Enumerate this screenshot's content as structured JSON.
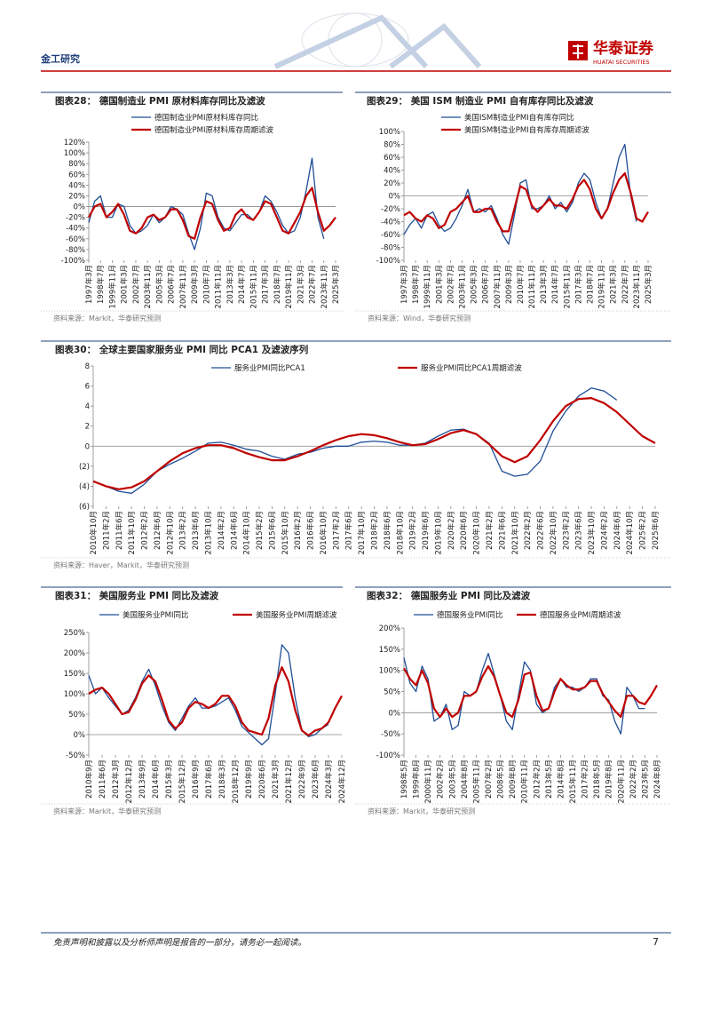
{
  "header": {
    "section": "金工研究",
    "logo": "华泰证券",
    "logo_en": "HUATAI SECURITIES"
  },
  "footer": {
    "disclaimer": "免责声明和披露以及分析师声明是报告的一部分，请务必一起阅读。",
    "page": 7
  },
  "chart_data": [
    {
      "type": "line",
      "title": "图表28： 德国制造业 PMI 原材料库存同比及滤波",
      "source": "资料来源：Markit，华泰研究预测",
      "categories": [
        "1997年3月",
        null,
        "1998年7月",
        null,
        "1999年11月",
        null,
        "2001年3月",
        null,
        "2002年7月",
        null,
        "2003年11月",
        null,
        "2005年3月",
        null,
        "2006年7月",
        null,
        "2007年11月",
        null,
        "2009年3月",
        null,
        "2010年7月",
        null,
        "2011年11月",
        null,
        "2013年3月",
        null,
        "2014年7月",
        null,
        "2015年11月",
        null,
        "2017年3月",
        null,
        "2018年7月",
        null,
        "2019年11月",
        null,
        "2021年3月",
        null,
        "2022年7月",
        null,
        "2023年11月",
        null,
        "2025年3月"
      ],
      "series": [
        {
          "name": "德国制造业PMI原材料库存同比",
          "color": "#1f4e96",
          "values": [
            -30,
            10,
            20,
            -20,
            -20,
            5,
            0,
            -35,
            -50,
            -45,
            -35,
            -15,
            -30,
            -20,
            0,
            -5,
            -15,
            -50,
            -80,
            -40,
            25,
            20,
            -20,
            -40,
            -45,
            -30,
            -15,
            -15,
            -25,
            -10,
            20,
            10,
            -10,
            -35,
            -50,
            -45,
            -20,
            30,
            90,
            -20,
            -60,
            null,
            null
          ]
        },
        {
          "name": "德国制造业PMI原材料库存周期滤波",
          "color": "#c00000",
          "values": [
            -20,
            0,
            5,
            -20,
            -10,
            5,
            -15,
            -45,
            -50,
            -40,
            -20,
            -15,
            -25,
            -20,
            -5,
            -5,
            -25,
            -55,
            -60,
            -20,
            10,
            5,
            -25,
            -45,
            -40,
            -15,
            -5,
            -20,
            -25,
            -10,
            10,
            5,
            -20,
            -45,
            -50,
            -30,
            -10,
            20,
            35,
            -10,
            -45,
            -35,
            -20
          ]
        }
      ],
      "ylim": [
        -100,
        120
      ],
      "yticks": [
        {
          "value": -100,
          "label": "-100%"
        },
        {
          "value": -80,
          "label": "-80%"
        },
        {
          "value": -60,
          "label": "-60%"
        },
        {
          "value": -40,
          "label": "-40%"
        },
        {
          "value": -20,
          "label": "-20%"
        },
        {
          "value": 0,
          "label": "0%"
        },
        {
          "value": 20,
          "label": "20%"
        },
        {
          "value": 40,
          "label": "40%"
        },
        {
          "value": 60,
          "label": "60%"
        },
        {
          "value": 80,
          "label": "80%"
        },
        {
          "value": 100,
          "label": "100%"
        },
        {
          "value": 120,
          "label": "120%"
        }
      ],
      "legend": "top-left"
    },
    {
      "type": "line",
      "title": "图表29： 美国 ISM 制造业 PMI 自有库存同比及滤波",
      "source": "资料来源：Wind，华泰研究预测",
      "categories": [
        "1997年3月",
        null,
        "1998年7月",
        null,
        "1999年11月",
        null,
        "2001年3月",
        null,
        "2002年7月",
        null,
        "2003年11月",
        null,
        "2005年3月",
        null,
        "2006年7月",
        null,
        "2007年11月",
        null,
        "2009年3月",
        null,
        "2010年7月",
        null,
        "2011年11月",
        null,
        "2013年3月",
        null,
        "2014年7月",
        null,
        "2015年11月",
        null,
        "2017年3月",
        null,
        "2018年7月",
        null,
        "2019年11月",
        null,
        "2021年3月",
        null,
        "2022年7月",
        null,
        "2023年11月",
        null,
        "2025年3月"
      ],
      "series": [
        {
          "name": "美国ISM制造业PMI自有库存同比",
          "color": "#1f4e96",
          "values": [
            -60,
            -45,
            -35,
            -50,
            -30,
            -25,
            -45,
            -55,
            -50,
            -35,
            -15,
            10,
            -25,
            -20,
            -25,
            -15,
            -35,
            -60,
            -75,
            -30,
            20,
            25,
            -20,
            -20,
            -15,
            0,
            -20,
            -10,
            -25,
            -10,
            20,
            35,
            25,
            -10,
            -35,
            -20,
            20,
            60,
            80,
            0,
            -40,
            null,
            null
          ]
        },
        {
          "name": "美国ISM制造业PMI自有库存周期滤波",
          "color": "#c00000",
          "values": [
            -30,
            -25,
            -35,
            -40,
            -30,
            -35,
            -50,
            -45,
            -25,
            -20,
            -10,
            0,
            -25,
            -25,
            -20,
            -20,
            -40,
            -55,
            -55,
            -20,
            15,
            10,
            -15,
            -25,
            -15,
            -5,
            -15,
            -15,
            -20,
            -5,
            15,
            25,
            10,
            -20,
            -35,
            -20,
            5,
            25,
            35,
            5,
            -35,
            -40,
            -25
          ]
        }
      ],
      "ylim": [
        -100,
        100
      ],
      "yticks": [
        {
          "value": -100,
          "label": "-100%"
        },
        {
          "value": -80,
          "label": "-80%"
        },
        {
          "value": -60,
          "label": "-60%"
        },
        {
          "value": -40,
          "label": "-40%"
        },
        {
          "value": -20,
          "label": "-20%"
        },
        {
          "value": 0,
          "label": "0%"
        },
        {
          "value": 20,
          "label": "20%"
        },
        {
          "value": 40,
          "label": "40%"
        },
        {
          "value": 60,
          "label": "60%"
        },
        {
          "value": 80,
          "label": "80%"
        },
        {
          "value": 100,
          "label": "100%"
        }
      ],
      "legend": "top-left"
    },
    {
      "type": "line",
      "title": "图表30： 全球主要国家服务业 PMI 同比 PCA1 及滤波序列",
      "source": "资料来源：Haver，Markit，华泰研究预测",
      "categories": [
        "2010年10月",
        "2011年2月",
        "2011年6月",
        "2011年10月",
        "2012年2月",
        "2012年6月",
        "2012年10月",
        "2013年2月",
        "2013年6月",
        "2013年10月",
        "2014年2月",
        "2014年6月",
        "2014年10月",
        "2015年2月",
        "2015年6月",
        "2015年10月",
        "2016年2月",
        "2016年6月",
        "2016年10月",
        "2017年2月",
        "2017年6月",
        "2017年10月",
        "2018年2月",
        "2018年6月",
        "2018年10月",
        "2019年2月",
        "2019年6月",
        "2019年10月",
        "2020年2月",
        "2020年6月",
        "2020年10月",
        "2021年2月",
        "2021年6月",
        "2021年10月",
        "2022年2月",
        "2022年6月",
        "2022年10月",
        "2023年2月",
        "2023年6月",
        "2023年10月",
        "2024年2月",
        "2024年6月",
        "2024年10月",
        "2025年2月",
        "2025年6月"
      ],
      "series": [
        {
          "name": "服务业PMI同比PCA1",
          "color": "#1f4e96",
          "values": [
            -3.5,
            -4.0,
            -4.5,
            -4.7,
            -3.8,
            -2.5,
            -1.8,
            -1.2,
            -0.5,
            0.3,
            0.4,
            0.1,
            -0.3,
            -0.5,
            -1.0,
            -1.3,
            -0.8,
            -0.6,
            -0.2,
            0,
            0,
            0.4,
            0.5,
            0.4,
            0.1,
            0.1,
            0.3,
            1.0,
            1.6,
            1.7,
            1.2,
            0.3,
            -2.5,
            -3.0,
            -2.8,
            -1.5,
            1.5,
            3.5,
            5.0,
            5.8,
            5.5,
            4.6,
            null,
            null,
            null
          ]
        },
        {
          "name": "服务业PMI同比PCA1周期滤波",
          "color": "#c00000",
          "values": [
            -3.5,
            -4.0,
            -4.3,
            -4.1,
            -3.5,
            -2.5,
            -1.5,
            -0.7,
            -0.2,
            0.1,
            0.1,
            -0.2,
            -0.7,
            -1.1,
            -1.4,
            -1.4,
            -1.0,
            -0.5,
            0.1,
            0.6,
            1.0,
            1.2,
            1.1,
            0.8,
            0.4,
            0.1,
            0.2,
            0.7,
            1.3,
            1.6,
            1.2,
            0.2,
            -1.0,
            -1.6,
            -1.0,
            0.6,
            2.5,
            4.0,
            4.7,
            4.8,
            4.3,
            3.4,
            2.2,
            1.0,
            0.3
          ]
        }
      ],
      "ylim": [
        -6,
        8
      ],
      "yticks": [
        {
          "value": -6,
          "label": "(6)"
        },
        {
          "value": -4,
          "label": "(4)"
        },
        {
          "value": -2,
          "label": "(2)"
        },
        0,
        2,
        4,
        6,
        8
      ],
      "legend": "top-center"
    },
    {
      "type": "line",
      "title": "图表31： 美国服务业 PMI 同比及滤波",
      "source": "资料来源：Markit，华泰研究预测",
      "categories": [
        "2010年9月",
        null,
        "2011年6月",
        null,
        "2012年3月",
        null,
        "2012年12月",
        null,
        "2013年9月",
        null,
        "2014年6月",
        null,
        "2015年3月",
        null,
        "2015年12月",
        null,
        "2016年9月",
        null,
        "2017年6月",
        null,
        "2018年3月",
        null,
        "2018年12月",
        null,
        "2019年9月",
        null,
        "2020年6月",
        null,
        "2021年3月",
        null,
        "2021年12月",
        null,
        "2022年9月",
        null,
        "2023年6月",
        null,
        "2024年3月",
        null,
        "2024年12月"
      ],
      "series": [
        {
          "name": "美国服务业PMI同比",
          "color": "#1f4e96",
          "values": [
            145,
            100,
            115,
            90,
            70,
            50,
            60,
            90,
            130,
            160,
            120,
            70,
            30,
            10,
            40,
            70,
            90,
            65,
            65,
            70,
            80,
            90,
            60,
            20,
            5,
            -10,
            -25,
            -10,
            100,
            220,
            200,
            90,
            10,
            -5,
            0,
            15,
            25,
            null,
            null
          ]
        },
        {
          "name": "美国服务业PMI周期滤波",
          "color": "#c00000",
          "values": [
            100,
            110,
            115,
            100,
            75,
            50,
            55,
            85,
            125,
            145,
            130,
            85,
            35,
            15,
            30,
            65,
            80,
            75,
            65,
            75,
            95,
            95,
            70,
            30,
            10,
            5,
            0,
            40,
            120,
            165,
            130,
            60,
            10,
            -2,
            10,
            15,
            30,
            65,
            95
          ]
        }
      ],
      "ylim": [
        -50,
        250
      ],
      "yticks": [
        {
          "value": -50,
          "label": "-50%"
        },
        {
          "value": 0,
          "label": "0%"
        },
        {
          "value": 50,
          "label": "50%"
        },
        {
          "value": 100,
          "label": "100%"
        },
        {
          "value": 150,
          "label": "150%"
        },
        {
          "value": 200,
          "label": "200%"
        },
        {
          "value": 250,
          "label": "250%"
        }
      ],
      "legend": "top-center"
    },
    {
      "type": "line",
      "title": "图表32： 德国服务业 PMI 同比及滤波",
      "source": "资料来源：Markit，华泰研究预测",
      "categories": [
        "1998年5月",
        null,
        "1999年8月",
        null,
        "2000年11月",
        null,
        "2002年2月",
        null,
        "2003年5月",
        null,
        "2004年8月",
        null,
        "2005年11月",
        null,
        "2007年2月",
        null,
        "2008年5月",
        null,
        "2009年8月",
        null,
        "2010年11月",
        null,
        "2012年2月",
        null,
        "2013年5月",
        null,
        "2014年8月",
        null,
        "2015年11月",
        null,
        "2017年2月",
        null,
        "2018年5月",
        null,
        "2019年8月",
        null,
        "2020年11月",
        null,
        "2022年2月",
        null,
        "2023年5月",
        null,
        "2024年8月"
      ],
      "series": [
        {
          "name": "德国服务业PMI同比",
          "color": "#1f4e96",
          "values": [
            130,
            70,
            50,
            110,
            80,
            -20,
            -10,
            20,
            -40,
            -30,
            50,
            40,
            50,
            100,
            140,
            90,
            40,
            -20,
            -40,
            40,
            120,
            100,
            20,
            0,
            10,
            60,
            80,
            60,
            60,
            50,
            60,
            80,
            80,
            40,
            30,
            -20,
            -50,
            60,
            40,
            10,
            10,
            null,
            null
          ]
        },
        {
          "name": "德国服务业PMI周期滤波",
          "color": "#c00000",
          "values": [
            105,
            80,
            65,
            100,
            70,
            10,
            -10,
            10,
            -10,
            0,
            40,
            40,
            50,
            85,
            110,
            85,
            40,
            0,
            -10,
            30,
            90,
            95,
            40,
            5,
            10,
            50,
            80,
            65,
            55,
            55,
            60,
            75,
            75,
            45,
            25,
            5,
            -10,
            40,
            40,
            25,
            20,
            40,
            65
          ]
        }
      ],
      "ylim": [
        -100,
        200
      ],
      "yticks": [
        {
          "value": -100,
          "label": "-100%"
        },
        {
          "value": -50,
          "label": "-50%"
        },
        {
          "value": 0,
          "label": "0%"
        },
        {
          "value": 50,
          "label": "50%"
        },
        {
          "value": 100,
          "label": "100%"
        },
        {
          "value": 150,
          "label": "150%"
        },
        {
          "value": 200,
          "label": "200%"
        }
      ],
      "legend": "top-center"
    }
  ]
}
